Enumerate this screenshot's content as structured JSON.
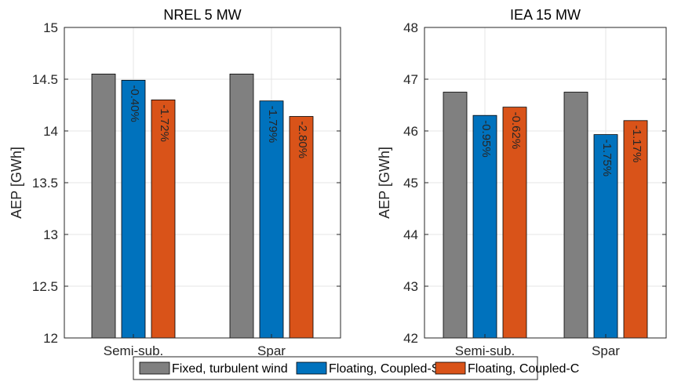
{
  "colors": {
    "fixed": "#808080",
    "coupled_s": "#0072BD",
    "coupled_c": "#D95319",
    "grid": "#e6e6e6",
    "axis": "#262626"
  },
  "legend": {
    "items": [
      {
        "label": "Fixed, turbulent wind",
        "color": "#808080"
      },
      {
        "label": "Floating, Coupled-S",
        "color": "#0072BD"
      },
      {
        "label": "Floating, Coupled-C",
        "color": "#D95319"
      }
    ]
  },
  "chart_data": [
    {
      "type": "bar",
      "title": "NREL 5 MW",
      "ylabel": "AEP [GWh]",
      "xlabel": "",
      "ylim": [
        12,
        15
      ],
      "yticks": [
        12,
        12.5,
        13,
        13.5,
        14,
        14.5,
        15
      ],
      "ytick_labels": [
        "12",
        "12.5",
        "13",
        "13.5",
        "14",
        "14.5",
        "15"
      ],
      "grid": true,
      "categories": [
        "Semi-sub.",
        "Spar"
      ],
      "series": [
        {
          "name": "Fixed, turbulent wind",
          "values": [
            14.55,
            14.55
          ],
          "labels": [
            "",
            ""
          ]
        },
        {
          "name": "Floating, Coupled-S",
          "values": [
            14.49,
            14.29
          ],
          "labels": [
            "-0.40%",
            "-1.79%"
          ]
        },
        {
          "name": "Floating, Coupled-C",
          "values": [
            14.3,
            14.14
          ],
          "labels": [
            "-1.72%",
            "-2.80%"
          ]
        }
      ]
    },
    {
      "type": "bar",
      "title": "IEA 15 MW",
      "ylabel": "AEP [GWh]",
      "xlabel": "",
      "ylim": [
        42,
        48
      ],
      "yticks": [
        42,
        43,
        44,
        45,
        46,
        47,
        48
      ],
      "ytick_labels": [
        "42",
        "43",
        "44",
        "45",
        "46",
        "47",
        "48"
      ],
      "grid": true,
      "categories": [
        "Semi-sub.",
        "Spar"
      ],
      "series": [
        {
          "name": "Fixed, turbulent wind",
          "values": [
            46.75,
            46.75
          ],
          "labels": [
            "",
            ""
          ]
        },
        {
          "name": "Floating, Coupled-S",
          "values": [
            46.3,
            45.93
          ],
          "labels": [
            "-0.95%",
            "-1.75%"
          ]
        },
        {
          "name": "Floating, Coupled-C",
          "values": [
            46.46,
            46.2
          ],
          "labels": [
            "-0.62%",
            "-1.17%"
          ]
        }
      ]
    }
  ]
}
